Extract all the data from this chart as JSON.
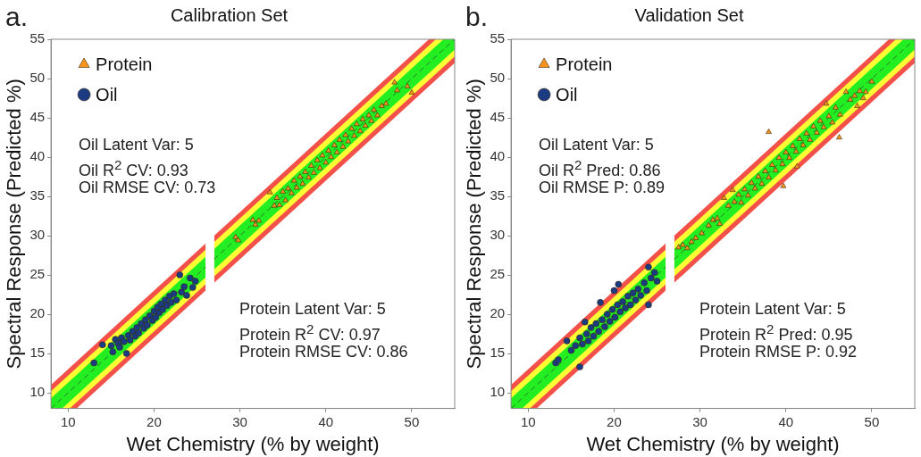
{
  "chart_data": [
    {
      "type": "scatter",
      "title": "Calibration Set",
      "xlabel": "Wet Chemistry (% by weight)",
      "ylabel": "Spectral Response (Predicted %)",
      "xlim": [
        8,
        55
      ],
      "ylim": [
        8,
        55
      ],
      "xticks": [
        10,
        20,
        30,
        40,
        50
      ],
      "yticks": [
        10,
        15,
        20,
        25,
        30,
        35,
        40,
        45,
        50,
        55
      ],
      "legend": "top left",
      "line_style": "dashed",
      "annotations": [
        "a.",
        "Oil Latent Var: 5",
        "Oil R$^{2}$ CV: 0.93",
        "Oil RMSE CV: 0.73",
        "Protein Latent Var: 5",
        "Protein R$^{2}$ CV: 0.97",
        "Protein RMSE CV: 0.86"
      ],
      "series": [
        {
          "type": "area",
          "color": "#f4504a",
          "x": [
            8,
            11,
            26
          ],
          "values": [
            null,
            null,
            null
          ],
          "lower": [
            8,
            8,
            23
          ],
          "upper": [
            11,
            14,
            29
          ]
        },
        {
          "type": "area",
          "color": "#ffff33",
          "x": [
            8,
            10.2,
            26
          ],
          "values": [
            null,
            null,
            null
          ],
          "lower": [
            8,
            8,
            23.8
          ],
          "upper": [
            10.2,
            12.4,
            28.2
          ]
        },
        {
          "type": "area",
          "color": "#22ee22",
          "x": [
            8,
            9.3,
            26
          ],
          "values": [
            null,
            null,
            null
          ],
          "lower": [
            8,
            8,
            24.7
          ],
          "upper": [
            9.3,
            10.6,
            27.3
          ]
        },
        {
          "type": "area",
          "color": "#f4504a",
          "x": [
            27,
            52,
            55
          ],
          "values": [
            null,
            null,
            null
          ],
          "lower": [
            24,
            49,
            52
          ],
          "upper": [
            30,
            55,
            55
          ]
        },
        {
          "type": "area",
          "color": "#ffff33",
          "x": [
            27,
            52.8,
            55
          ],
          "values": [
            null,
            null,
            null
          ],
          "lower": [
            24.8,
            50.6,
            52.8
          ],
          "upper": [
            29.2,
            55,
            55
          ]
        },
        {
          "type": "area",
          "color": "#22ee22",
          "x": [
            27,
            53.7,
            55
          ],
          "values": [
            null,
            null,
            null
          ],
          "lower": [
            25.7,
            52.4,
            53.7
          ],
          "upper": [
            28.3,
            55,
            55
          ]
        },
        {
          "type": "line",
          "color": "#2a7a2a",
          "x": [
            8,
            26
          ],
          "values": [
            8,
            26
          ]
        },
        {
          "type": "line",
          "color": "#2a7a2a",
          "x": [
            27,
            55
          ],
          "values": [
            27,
            55
          ]
        },
        {
          "type": "scatter",
          "name": "Protein",
          "color": "#f7941d",
          "marker": "triangle",
          "x": [
            29.5,
            29.8,
            31.5,
            31.8,
            32.2,
            33.5,
            34,
            34.3,
            34.6,
            35,
            35.3,
            35.6,
            36,
            36.3,
            36.6,
            37,
            37.3,
            37.6,
            38,
            38.3,
            38.6,
            39,
            39.3,
            39.6,
            40,
            40.3,
            40.6,
            41,
            41.3,
            41.6,
            42,
            42.3,
            42.6,
            43,
            43.3,
            43.6,
            44,
            44.3,
            44.6,
            45,
            45.3,
            45.6,
            46,
            46.5,
            47,
            48,
            48.3,
            49.5,
            50
          ],
          "values": [
            29.8,
            29.4,
            32,
            31.4,
            31.9,
            35.5,
            33.8,
            34.8,
            33.9,
            35.6,
            34.5,
            36,
            35.4,
            37,
            36.1,
            37.5,
            36.6,
            38.1,
            37.4,
            38.9,
            38,
            39.6,
            38.6,
            40.2,
            39.3,
            40.8,
            40,
            41.5,
            40.6,
            42.2,
            41.3,
            42.8,
            42,
            43.6,
            42.7,
            44.2,
            43.3,
            44.8,
            44,
            45.3,
            44.6,
            46,
            45.3,
            46.5,
            46.8,
            49.5,
            48.5,
            49,
            48.2
          ]
        },
        {
          "type": "scatter",
          "name": "Oil",
          "color": "#1b3c82",
          "marker": "circle",
          "x": [
            13,
            14,
            15,
            15.2,
            15.5,
            15.8,
            16,
            16.2,
            16.5,
            16.8,
            17,
            17.2,
            17.5,
            17.8,
            18,
            18.2,
            18.5,
            18.8,
            19,
            19.2,
            19.5,
            19.8,
            20,
            20.2,
            20.4,
            20.6,
            20.8,
            21,
            21.3,
            21.5,
            21.8,
            22,
            22.3,
            22.6,
            23,
            23.2,
            23.5,
            23.8,
            24.2,
            24.5,
            24.8
          ],
          "values": [
            13.8,
            16.1,
            16,
            15.2,
            16.8,
            16.3,
            15.8,
            17,
            16.5,
            15,
            17.3,
            16.7,
            17.8,
            17.2,
            18.3,
            17.6,
            18.8,
            18.2,
            19.3,
            18.6,
            19.8,
            19.2,
            20.4,
            19.6,
            20.9,
            20.2,
            21.3,
            20.6,
            21.8,
            21.1,
            22.3,
            21.5,
            22.6,
            21.8,
            25,
            22.8,
            23.5,
            22.4,
            24.6,
            23.4,
            24.2
          ]
        }
      ]
    },
    {
      "type": "scatter",
      "title": "Validation Set",
      "xlabel": "Wet Chemistry (% by weight)",
      "ylabel": "Spectral Response (Predicted %)",
      "xlim": [
        8,
        55
      ],
      "ylim": [
        8,
        55
      ],
      "xticks": [
        10,
        20,
        30,
        40,
        50
      ],
      "yticks": [
        10,
        15,
        20,
        25,
        30,
        35,
        40,
        45,
        50,
        55
      ],
      "legend": "top left",
      "line_style": "dashed",
      "annotations": [
        "b.",
        "Oil Latent Var: 5",
        "Oil R$^{2}$ Pred: 0.86",
        "Oil RMSE P: 0.89",
        "Protein Latent Var: 5",
        "Protein R$^{2}$ Pred: 0.95",
        "Protein RMSE P: 0.92"
      ],
      "series": [
        {
          "type": "area",
          "color": "#f4504a",
          "x": [
            8,
            11,
            26
          ],
          "values": [
            null,
            null,
            null
          ],
          "lower": [
            8,
            8,
            23
          ],
          "upper": [
            11,
            14,
            29
          ]
        },
        {
          "type": "area",
          "color": "#ffff33",
          "x": [
            8,
            10.2,
            26
          ],
          "values": [
            null,
            null,
            null
          ],
          "lower": [
            8,
            8,
            23.8
          ],
          "upper": [
            10.2,
            12.4,
            28.2
          ]
        },
        {
          "type": "area",
          "color": "#22ee22",
          "x": [
            8,
            9.3,
            26
          ],
          "values": [
            null,
            null,
            null
          ],
          "lower": [
            8,
            8,
            24.7
          ],
          "upper": [
            9.3,
            10.6,
            27.3
          ]
        },
        {
          "type": "area",
          "color": "#f4504a",
          "x": [
            27,
            52,
            55
          ],
          "values": [
            null,
            null,
            null
          ],
          "lower": [
            24,
            49,
            52
          ],
          "upper": [
            30,
            55,
            55
          ]
        },
        {
          "type": "area",
          "color": "#ffff33",
          "x": [
            27,
            52.8,
            55
          ],
          "values": [
            null,
            null,
            null
          ],
          "lower": [
            24.8,
            50.6,
            52.8
          ],
          "upper": [
            29.2,
            55,
            55
          ]
        },
        {
          "type": "area",
          "color": "#22ee22",
          "x": [
            27,
            53.7,
            55
          ],
          "values": [
            null,
            null,
            null
          ],
          "lower": [
            25.7,
            52.4,
            53.7
          ],
          "upper": [
            28.3,
            55,
            55
          ]
        },
        {
          "type": "line",
          "color": "#2a7a2a",
          "x": [
            8,
            26
          ],
          "values": [
            8,
            26
          ]
        },
        {
          "type": "line",
          "color": "#2a7a2a",
          "x": [
            27,
            55
          ],
          "values": [
            27,
            55
          ]
        },
        {
          "type": "scatter",
          "name": "Protein",
          "color": "#f7941d",
          "marker": "triangle",
          "x": [
            27.5,
            28,
            28.5,
            29,
            29.5,
            30.2,
            31,
            31.5,
            32,
            32.3,
            32.8,
            33.3,
            33.8,
            34,
            34.5,
            34.8,
            35.2,
            35.6,
            36,
            36.4,
            36.8,
            37.2,
            37.6,
            38,
            38,
            38.4,
            38.8,
            39.2,
            39.6,
            39.7,
            40,
            40.4,
            40.8,
            41.2,
            41.3,
            41.6,
            42,
            42.4,
            42.8,
            43.2,
            43.6,
            44,
            44.4,
            44.7,
            45,
            45.4,
            45.8,
            46.2,
            46.3,
            47,
            47.5,
            48,
            48.3,
            48.6,
            49,
            49.3,
            50
          ],
          "values": [
            28.5,
            28.8,
            28.4,
            29.2,
            29.7,
            30.3,
            31.3,
            32,
            32.2,
            31.5,
            34.8,
            33.8,
            35.8,
            34.3,
            35.2,
            34.2,
            35.9,
            35.1,
            36.7,
            36,
            37.5,
            36.6,
            38.2,
            43.2,
            37.4,
            39,
            38.3,
            39.9,
            39.1,
            36.3,
            40.6,
            39.9,
            41.4,
            40.7,
            38.8,
            42.3,
            41.5,
            43,
            42.2,
            43.9,
            43.1,
            44.6,
            43.8,
            46.8,
            45.2,
            44.4,
            46.3,
            42.5,
            45.4,
            48.3,
            47.3,
            47.8,
            46.5,
            48.4,
            47.5,
            48.3,
            49.6
          ]
        },
        {
          "type": "scatter",
          "name": "Oil",
          "color": "#1b3c82",
          "marker": "circle",
          "x": [
            13.2,
            13.5,
            14.5,
            15,
            15.5,
            16,
            16,
            16.3,
            16.6,
            16.8,
            17,
            17.3,
            17.6,
            17.9,
            18.2,
            18.4,
            18.6,
            18.9,
            19.2,
            19.5,
            19.8,
            20,
            20.1,
            20.4,
            20.5,
            20.7,
            21,
            21.3,
            21.6,
            21.9,
            22.2,
            22.5,
            22.8,
            23.1,
            23.5,
            23.8,
            24,
            24,
            24.3,
            24.7,
            25
          ],
          "values": [
            13.8,
            14.2,
            16.6,
            15.4,
            16,
            13.3,
            17,
            16.2,
            19,
            17.5,
            16.6,
            18.3,
            17.2,
            18.8,
            17.8,
            21.5,
            19.3,
            18.4,
            20,
            19.1,
            20.6,
            23,
            19.6,
            21.2,
            23.8,
            20.3,
            21.6,
            20.8,
            22.3,
            21.2,
            22.7,
            21.8,
            23.2,
            22.4,
            24,
            23,
            26,
            21.2,
            24.6,
            25.3,
            24.2
          ]
        }
      ]
    }
  ]
}
